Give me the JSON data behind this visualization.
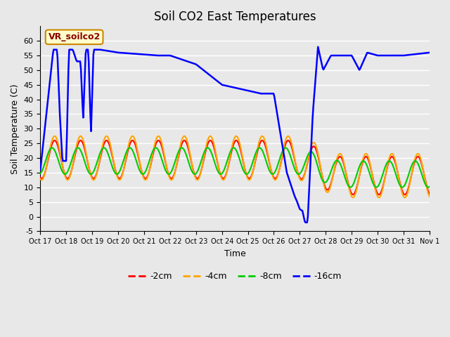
{
  "title": "Soil CO2 East Temperatures",
  "xlabel": "Time",
  "ylabel": "Soil Temperature (C)",
  "annotation": "VR_soilco2",
  "ylim": [
    -5,
    65
  ],
  "yticks": [
    -5,
    0,
    5,
    10,
    15,
    20,
    25,
    30,
    35,
    40,
    45,
    50,
    55,
    60
  ],
  "legend_labels": [
    "-2cm",
    "-4cm",
    "-8cm",
    "-16cm"
  ],
  "legend_colors": [
    "#ff0000",
    "#ffa500",
    "#00cc00",
    "#0000ff"
  ],
  "x_tick_labels": [
    "Oct 17",
    "Oct 18",
    "Oct 19",
    "Oct 20",
    "Oct 21",
    "Oct 22",
    "Oct 23",
    "Oct 24",
    "Oct 25",
    "Oct 26",
    "Oct 27",
    "Oct 28",
    "Oct 29",
    "Oct 30",
    "Oct 31",
    "Nov 1"
  ],
  "title_fontsize": 12,
  "axis_label_fontsize": 9,
  "tick_fontsize": 8,
  "figsize": [
    6.4,
    4.8
  ],
  "dpi": 100,
  "bg_color": "#e8e8e8",
  "grid_color": "#ffffff"
}
